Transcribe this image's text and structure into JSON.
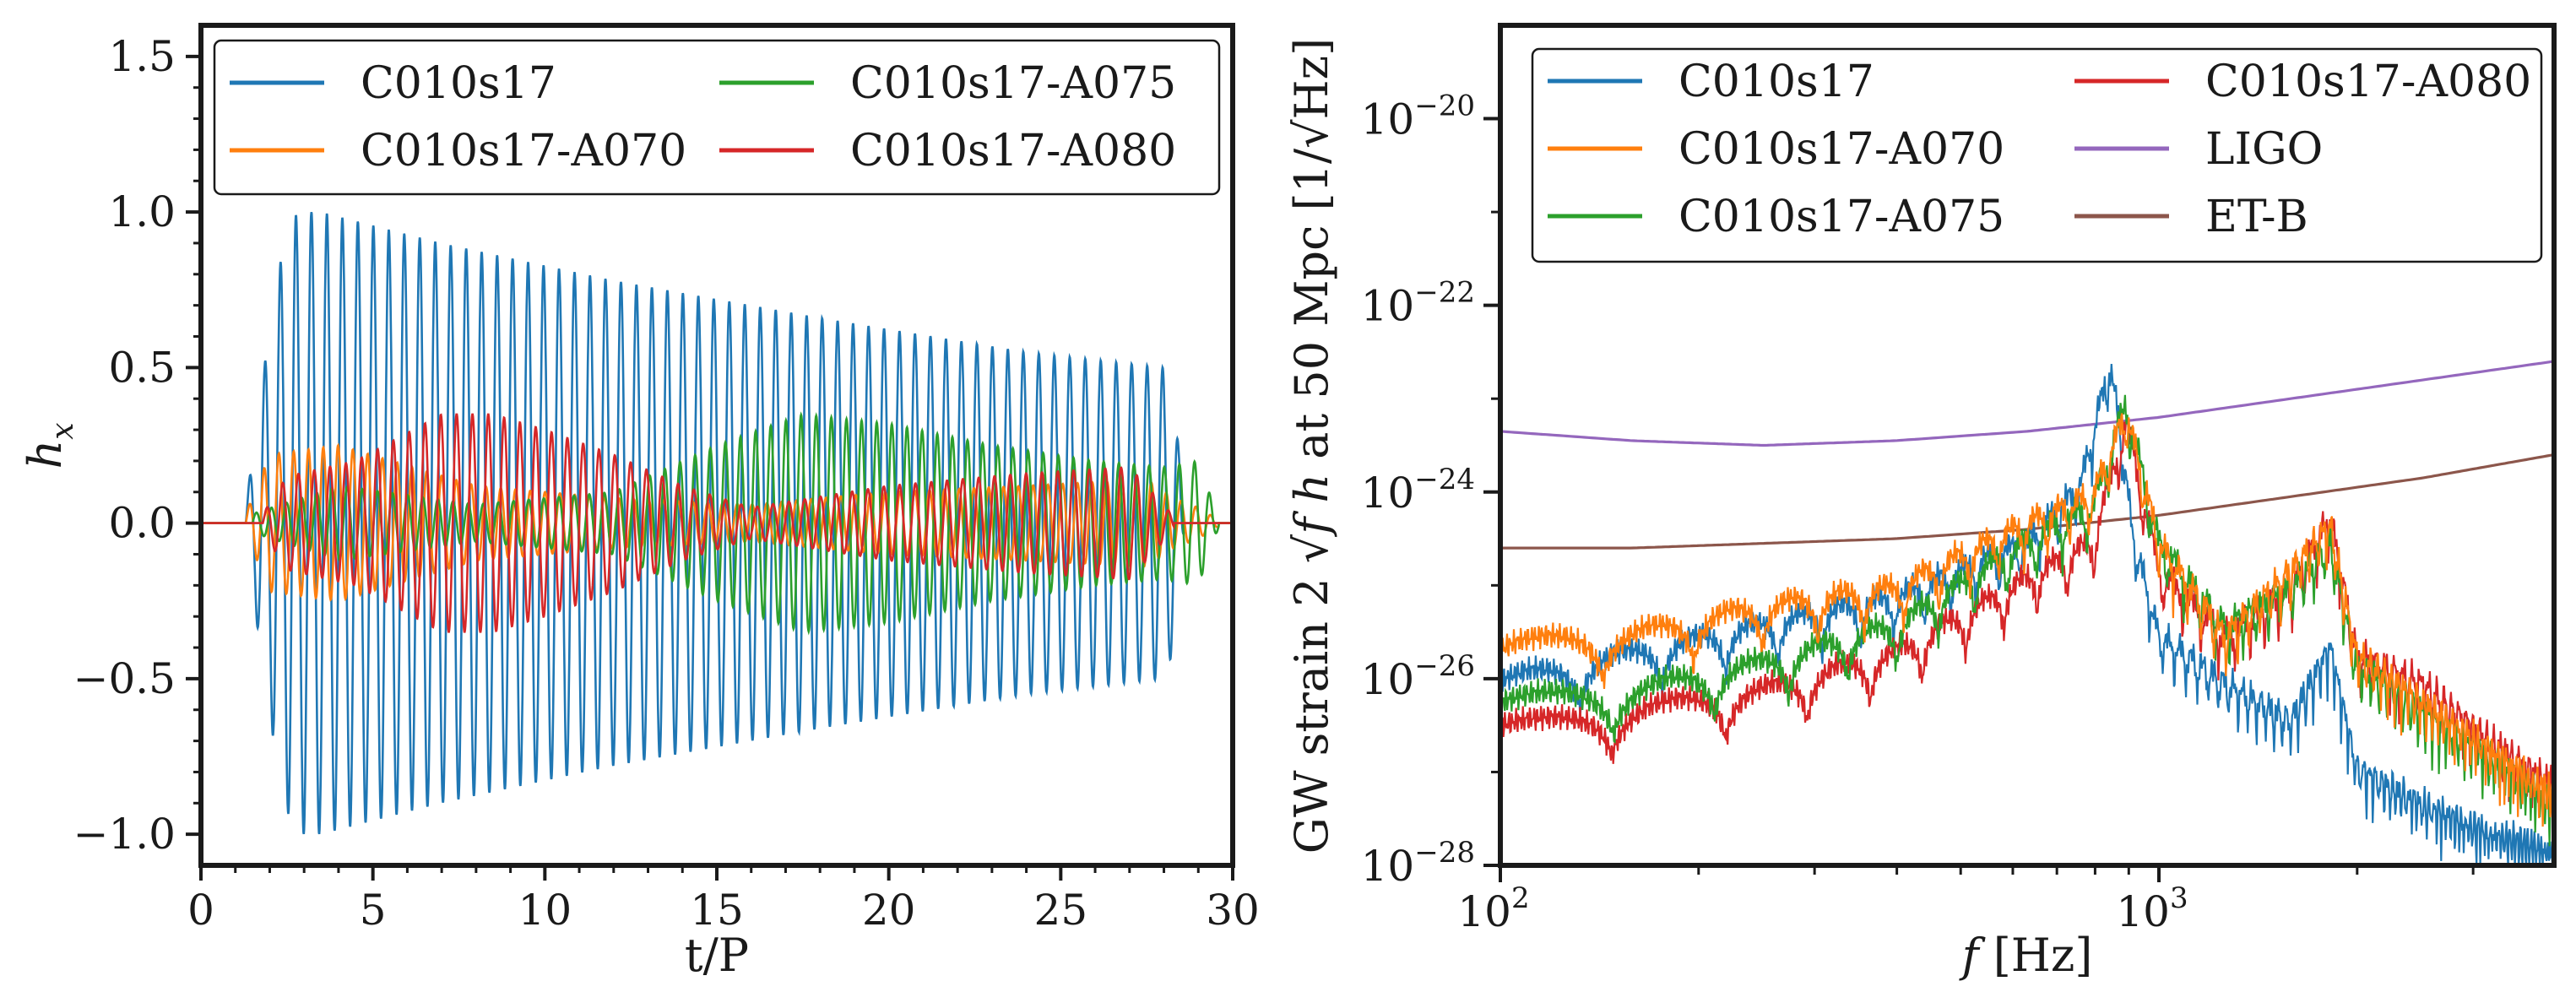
{
  "chart_data": [
    {
      "type": "line",
      "xlabel": "t/P",
      "ylabel_base": "h",
      "ylabel_sub": "x",
      "xlim": [
        0,
        30
      ],
      "ylim": [
        -1.1,
        1.6
      ],
      "xticks": [
        0,
        5,
        10,
        15,
        20,
        25,
        30
      ],
      "xtick_labels": [
        "0",
        "5",
        "10",
        "15",
        "20",
        "25",
        "30"
      ],
      "yticks": [
        -1.0,
        -0.5,
        0.0,
        0.5,
        1.0,
        1.5
      ],
      "ytick_labels": [
        "−1.0",
        "−0.5",
        "0.0",
        "0.5",
        "1.0",
        "1.5"
      ],
      "legend": {
        "placement": "top",
        "columns": 2,
        "order": [
          "C010s17",
          "C010s17-A075",
          "C010s17-A070",
          "C010s17-A080"
        ]
      },
      "series": [
        {
          "name": "C010s17",
          "color": "#1f77b4",
          "start": 1.3,
          "end": 28.6,
          "period": 0.45,
          "envelope": {
            "t": [
              1.3,
              1.9,
              2.4,
              2.8,
              3.5,
              7,
              12,
              18,
              24,
              28,
              28.3,
              28.6
            ],
            "amp": [
              0.05,
              0.55,
              0.9,
              1.0,
              1.0,
              0.9,
              0.78,
              0.66,
              0.55,
              0.5,
              0.4,
              0.02
            ]
          }
        },
        {
          "name": "C010s17-A070",
          "color": "#ff7f0e",
          "start": 1.3,
          "end": 29.6,
          "period": 0.43,
          "envelope": {
            "t": [
              1.3,
              2.0,
              4.0,
              8.0,
              12.0,
              16.0,
              20.0,
              24.0,
              27.5,
              28.3,
              29.0,
              29.6
            ],
            "amp": [
              0.03,
              0.22,
              0.25,
              0.12,
              0.08,
              0.06,
              0.1,
              0.12,
              0.14,
              0.08,
              0.05,
              0.01
            ]
          }
        },
        {
          "name": "C010s17-A075",
          "color": "#2ca02c",
          "start": 1.5,
          "end": 29.6,
          "period": 0.44,
          "envelope": {
            "t": [
              1.5,
              4.0,
              8.0,
              12.0,
              15.0,
              17.5,
              20.0,
              23.0,
              26.0,
              28.0,
              29.0,
              29.6
            ],
            "amp": [
              0.03,
              0.12,
              0.06,
              0.1,
              0.25,
              0.35,
              0.32,
              0.25,
              0.2,
              0.18,
              0.2,
              0.01
            ]
          }
        },
        {
          "name": "C010s17-A080",
          "color": "#d62728",
          "start": 1.8,
          "end": 28.3,
          "period": 0.46,
          "envelope": {
            "t": [
              1.8,
              2.5,
              4.5,
              7.0,
              8.5,
              10.0,
              12.0,
              14.0,
              16.0,
              20.0,
              24.0,
              27.0,
              28.3
            ],
            "amp": [
              0.03,
              0.15,
              0.2,
              0.35,
              0.35,
              0.3,
              0.22,
              0.12,
              0.05,
              0.12,
              0.16,
              0.18,
              0.02
            ]
          }
        }
      ]
    },
    {
      "type": "line",
      "xscale": "log",
      "yscale": "log",
      "xlabel_italic": "f",
      "xlabel_rest": " [Hz]",
      "ylabel_prefix": "GW strain 2",
      "ylabel_middle": "f h",
      "ylabel_suffix": " at 50 Mpc  [1/",
      "ylabel_hz": "Hz",
      "ylabel_close": "]",
      "xlim_exp": [
        2,
        3.6
      ],
      "ylim_exp": [
        -28,
        -19
      ],
      "xticks_exp": [
        2,
        3
      ],
      "xtick_labels": [
        {
          "base": "10",
          "exp": "2"
        },
        {
          "base": "10",
          "exp": "3"
        }
      ],
      "yticks_exp": [
        -20,
        -22,
        -24,
        -26,
        -28
      ],
      "ytick_labels": [
        {
          "base": "10",
          "exp": "−20"
        },
        {
          "base": "10",
          "exp": "−22"
        },
        {
          "base": "10",
          "exp": "−24"
        },
        {
          "base": "10",
          "exp": "−26"
        },
        {
          "base": "10",
          "exp": "−28"
        }
      ],
      "legend": {
        "placement": "top",
        "columns": 2,
        "order": [
          "C010s17",
          "C010s17-A080",
          "C010s17-A070",
          "LIGO",
          "C010s17-A075",
          "ET-B"
        ]
      },
      "series": [
        {
          "name": "C010s17",
          "color": "#1f77b4",
          "kind": "spectrum",
          "log_f": [
            2.0,
            2.2,
            2.4,
            2.6,
            2.8,
            2.88,
            2.925,
            2.94,
            2.96,
            3.0,
            3.1,
            3.2,
            3.26,
            3.3,
            3.4,
            3.5,
            3.6
          ],
          "log_h": [
            -26.0,
            -25.7,
            -25.4,
            -25.1,
            -24.5,
            -23.9,
            -22.6,
            -23.2,
            -24.4,
            -25.5,
            -26.0,
            -26.4,
            -25.6,
            -26.9,
            -27.3,
            -27.6,
            -27.8
          ]
        },
        {
          "name": "C010s17-A070",
          "color": "#ff7f0e",
          "kind": "spectrum",
          "log_f": [
            2.0,
            2.2,
            2.4,
            2.6,
            2.8,
            2.9,
            2.95,
            3.0,
            3.1,
            3.2,
            3.26,
            3.3,
            3.4,
            3.5,
            3.6
          ],
          "log_h": [
            -25.6,
            -25.5,
            -25.2,
            -25.0,
            -24.3,
            -24.0,
            -23.1,
            -24.5,
            -25.5,
            -24.8,
            -24.3,
            -25.7,
            -26.2,
            -26.7,
            -27.2
          ]
        },
        {
          "name": "C010s17-A075",
          "color": "#2ca02c",
          "kind": "spectrum",
          "log_f": [
            2.0,
            2.2,
            2.4,
            2.6,
            2.8,
            2.9,
            2.95,
            3.0,
            3.1,
            3.2,
            3.26,
            3.3,
            3.4,
            3.5,
            3.6
          ],
          "log_h": [
            -26.2,
            -26.1,
            -25.8,
            -25.4,
            -24.5,
            -24.1,
            -23.0,
            -24.5,
            -25.4,
            -25.0,
            -24.5,
            -25.8,
            -26.3,
            -26.8,
            -27.3
          ]
        },
        {
          "name": "C010s17-A080",
          "color": "#d62728",
          "kind": "spectrum",
          "log_f": [
            2.0,
            2.2,
            2.4,
            2.6,
            2.8,
            2.9,
            2.95,
            3.0,
            3.1,
            3.2,
            3.26,
            3.3,
            3.4,
            3.5,
            3.6
          ],
          "log_h": [
            -26.5,
            -26.3,
            -26.1,
            -25.7,
            -24.9,
            -24.5,
            -23.2,
            -24.8,
            -25.5,
            -25.0,
            -24.2,
            -25.7,
            -26.0,
            -26.6,
            -27.1
          ]
        },
        {
          "name": "LIGO",
          "color": "#9467bd",
          "kind": "smooth",
          "log_f": [
            2.0,
            2.2,
            2.4,
            2.6,
            2.8,
            3.0,
            3.2,
            3.4,
            3.6
          ],
          "log_h": [
            -23.35,
            -23.45,
            -23.5,
            -23.45,
            -23.35,
            -23.2,
            -23.0,
            -22.8,
            -22.6
          ]
        },
        {
          "name": "ET-B",
          "color": "#8c564b",
          "kind": "smooth",
          "log_f": [
            2.0,
            2.2,
            2.4,
            2.6,
            2.8,
            3.0,
            3.2,
            3.4,
            3.6
          ],
          "log_h": [
            -24.6,
            -24.6,
            -24.55,
            -24.5,
            -24.4,
            -24.25,
            -24.05,
            -23.85,
            -23.6
          ]
        }
      ]
    }
  ]
}
